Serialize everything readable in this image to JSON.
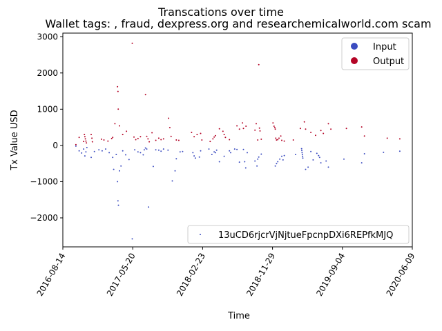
{
  "chart_data": {
    "type": "scatter",
    "title": "Transcations over time",
    "subtitle": "Wallet tags: , fraud, dexpress.org and researchemicalworld.com scam",
    "xlabel": "Time",
    "ylabel": "Tx Value USD",
    "x_ticks": [
      "2016-08-14",
      "2017-05-20",
      "2018-02-23",
      "2018-11-29",
      "2019-09-04",
      "2020-06-09"
    ],
    "y_ticks": [
      "−2000",
      "−1000",
      "0",
      "1000",
      "2000",
      "3000"
    ],
    "xlim": [
      "2016-08-14",
      "2020-06-09"
    ],
    "ylim": [
      -2800,
      3100
    ],
    "grid": false,
    "legend_location": "upper right",
    "legend": [
      {
        "label": "Input",
        "color": "#3b4cc0"
      },
      {
        "label": "Output",
        "color": "#b40426"
      }
    ],
    "legend2": {
      "label": "13uCD6rjcrVjNjtueFpcnpDXi6REPfkMJQ",
      "color": "#3b4cc0",
      "location": "lower right"
    },
    "series": [
      {
        "name": "Input",
        "color": "#3b4cc0",
        "points": [
          [
            "2016-10-05",
            -20
          ],
          [
            "2016-10-18",
            -150
          ],
          [
            "2016-10-28",
            -210
          ],
          [
            "2016-11-05",
            -100
          ],
          [
            "2016-11-10",
            -290
          ],
          [
            "2016-11-14",
            -180
          ],
          [
            "2016-11-18",
            -60
          ],
          [
            "2016-12-05",
            -330
          ],
          [
            "2016-12-18",
            -170
          ],
          [
            "2017-01-05",
            -120
          ],
          [
            "2017-01-18",
            -150
          ],
          [
            "2017-02-01",
            -100
          ],
          [
            "2017-02-15",
            -200
          ],
          [
            "2017-03-01",
            -330
          ],
          [
            "2017-03-05",
            -660
          ],
          [
            "2017-03-15",
            -250
          ],
          [
            "2017-03-20",
            -1000
          ],
          [
            "2017-03-22",
            -1530
          ],
          [
            "2017-03-24",
            -1650
          ],
          [
            "2017-03-28",
            -700
          ],
          [
            "2017-04-03",
            -570
          ],
          [
            "2017-04-10",
            -150
          ],
          [
            "2017-04-22",
            -260
          ],
          [
            "2017-05-05",
            -390
          ],
          [
            "2017-05-18",
            -2580
          ],
          [
            "2017-05-28",
            -120
          ],
          [
            "2017-06-10",
            -180
          ],
          [
            "2017-06-20",
            -200
          ],
          [
            "2017-07-01",
            -260
          ],
          [
            "2017-07-05",
            -120
          ],
          [
            "2017-07-10",
            -70
          ],
          [
            "2017-07-15",
            -100
          ],
          [
            "2017-07-22",
            -1700
          ],
          [
            "2017-08-10",
            -580
          ],
          [
            "2017-08-20",
            -120
          ],
          [
            "2017-09-01",
            -130
          ],
          [
            "2017-09-10",
            -160
          ],
          [
            "2017-09-20",
            -100
          ],
          [
            "2017-10-08",
            -130
          ],
          [
            "2017-10-25",
            -980
          ],
          [
            "2017-11-05",
            -700
          ],
          [
            "2017-11-10",
            -370
          ],
          [
            "2017-11-25",
            -180
          ],
          [
            "2017-12-05",
            -170
          ],
          [
            "2018-01-15",
            -200
          ],
          [
            "2018-01-20",
            -290
          ],
          [
            "2018-01-25",
            -350
          ],
          [
            "2018-02-10",
            -320
          ],
          [
            "2018-02-15",
            -150
          ],
          [
            "2018-03-20",
            -100
          ],
          [
            "2018-04-01",
            -250
          ],
          [
            "2018-04-10",
            -180
          ],
          [
            "2018-04-15",
            -200
          ],
          [
            "2018-04-20",
            -130
          ],
          [
            "2018-05-01",
            -450
          ],
          [
            "2018-05-20",
            -300
          ],
          [
            "2018-06-10",
            -150
          ],
          [
            "2018-06-15",
            -200
          ],
          [
            "2018-07-01",
            -100
          ],
          [
            "2018-07-10",
            -110
          ],
          [
            "2018-07-20",
            -460
          ],
          [
            "2018-08-05",
            -110
          ],
          [
            "2018-08-10",
            -450
          ],
          [
            "2018-08-14",
            -620
          ],
          [
            "2018-08-20",
            -200
          ],
          [
            "2018-09-20",
            -430
          ],
          [
            "2018-09-28",
            -570
          ],
          [
            "2018-10-01",
            -380
          ],
          [
            "2018-10-05",
            -320
          ],
          [
            "2018-10-15",
            -240
          ],
          [
            "2018-12-10",
            -570
          ],
          [
            "2018-12-15",
            -500
          ],
          [
            "2018-12-20",
            -450
          ],
          [
            "2018-12-28",
            -380
          ],
          [
            "2019-01-05",
            -300
          ],
          [
            "2019-01-10",
            -400
          ],
          [
            "2019-01-15",
            -280
          ],
          [
            "2019-03-01",
            -250
          ],
          [
            "2019-03-25",
            -90
          ],
          [
            "2019-03-26",
            -140
          ],
          [
            "2019-03-27",
            -200
          ],
          [
            "2019-03-28",
            -250
          ],
          [
            "2019-03-29",
            -300
          ],
          [
            "2019-03-30",
            -350
          ],
          [
            "2019-04-10",
            -660
          ],
          [
            "2019-04-20",
            -600
          ],
          [
            "2019-05-01",
            -170
          ],
          [
            "2019-05-10",
            -400
          ],
          [
            "2019-05-25",
            -220
          ],
          [
            "2019-06-01",
            -280
          ],
          [
            "2019-06-05",
            -330
          ],
          [
            "2019-06-10",
            -480
          ],
          [
            "2019-07-01",
            -430
          ],
          [
            "2019-07-10",
            -600
          ],
          [
            "2019-09-10",
            -380
          ],
          [
            "2019-11-20",
            -480
          ],
          [
            "2019-12-01",
            -230
          ],
          [
            "2020-02-15",
            -190
          ],
          [
            "2020-04-20",
            -160
          ]
        ]
      },
      {
        "name": "Output",
        "color": "#b40426",
        "points": [
          [
            "2016-10-05",
            20
          ],
          [
            "2016-10-18",
            220
          ],
          [
            "2016-11-05",
            110
          ],
          [
            "2016-11-08",
            300
          ],
          [
            "2016-11-10",
            240
          ],
          [
            "2016-11-12",
            180
          ],
          [
            "2016-11-14",
            120
          ],
          [
            "2016-11-16",
            70
          ],
          [
            "2016-12-05",
            300
          ],
          [
            "2016-12-08",
            200
          ],
          [
            "2016-12-10",
            100
          ],
          [
            "2017-01-15",
            170
          ],
          [
            "2017-01-25",
            150
          ],
          [
            "2017-02-10",
            120
          ],
          [
            "2017-02-25",
            190
          ],
          [
            "2017-03-01",
            220
          ],
          [
            "2017-03-10",
            600
          ],
          [
            "2017-03-20",
            1620
          ],
          [
            "2017-03-22",
            1490
          ],
          [
            "2017-03-23",
            1000
          ],
          [
            "2017-03-28",
            540
          ],
          [
            "2017-04-10",
            300
          ],
          [
            "2017-04-25",
            390
          ],
          [
            "2017-05-18",
            2820
          ],
          [
            "2017-05-25",
            230
          ],
          [
            "2017-06-01",
            160
          ],
          [
            "2017-06-10",
            190
          ],
          [
            "2017-06-20",
            240
          ],
          [
            "2017-07-10",
            1400
          ],
          [
            "2017-07-15",
            250
          ],
          [
            "2017-07-20",
            180
          ],
          [
            "2017-07-25",
            100
          ],
          [
            "2017-08-05",
            350
          ],
          [
            "2017-08-20",
            140
          ],
          [
            "2017-09-01",
            200
          ],
          [
            "2017-09-10",
            160
          ],
          [
            "2017-09-20",
            180
          ],
          [
            "2017-10-10",
            750
          ],
          [
            "2017-10-15",
            490
          ],
          [
            "2017-10-20",
            250
          ],
          [
            "2017-11-10",
            150
          ],
          [
            "2017-11-20",
            140
          ],
          [
            "2018-01-10",
            360
          ],
          [
            "2018-01-20",
            240
          ],
          [
            "2018-02-01",
            300
          ],
          [
            "2018-02-15",
            330
          ],
          [
            "2018-02-20",
            150
          ],
          [
            "2018-03-25",
            110
          ],
          [
            "2018-04-05",
            180
          ],
          [
            "2018-04-10",
            230
          ],
          [
            "2018-04-15",
            270
          ],
          [
            "2018-05-01",
            460
          ],
          [
            "2018-05-15",
            390
          ],
          [
            "2018-05-20",
            300
          ],
          [
            "2018-05-25",
            220
          ],
          [
            "2018-06-10",
            160
          ],
          [
            "2018-07-10",
            540
          ],
          [
            "2018-07-20",
            450
          ],
          [
            "2018-08-01",
            620
          ],
          [
            "2018-08-05",
            470
          ],
          [
            "2018-08-15",
            530
          ],
          [
            "2018-09-20",
            420
          ],
          [
            "2018-09-25",
            600
          ],
          [
            "2018-10-01",
            150
          ],
          [
            "2018-10-05",
            2230
          ],
          [
            "2018-10-08",
            480
          ],
          [
            "2018-10-10",
            400
          ],
          [
            "2018-10-15",
            170
          ],
          [
            "2018-12-01",
            620
          ],
          [
            "2018-12-05",
            530
          ],
          [
            "2018-12-08",
            490
          ],
          [
            "2018-12-10",
            450
          ],
          [
            "2018-12-12",
            200
          ],
          [
            "2018-12-15",
            150
          ],
          [
            "2018-12-20",
            160
          ],
          [
            "2018-12-25",
            200
          ],
          [
            "2019-01-01",
            260
          ],
          [
            "2019-01-05",
            140
          ],
          [
            "2019-01-15",
            120
          ],
          [
            "2019-02-20",
            150
          ],
          [
            "2019-03-20",
            470
          ],
          [
            "2019-04-05",
            650
          ],
          [
            "2019-04-10",
            450
          ],
          [
            "2019-05-01",
            360
          ],
          [
            "2019-05-20",
            280
          ],
          [
            "2019-06-10",
            410
          ],
          [
            "2019-06-20",
            330
          ],
          [
            "2019-07-10",
            600
          ],
          [
            "2019-07-20",
            450
          ],
          [
            "2019-09-20",
            470
          ],
          [
            "2019-11-20",
            510
          ],
          [
            "2019-12-01",
            260
          ],
          [
            "2020-03-01",
            200
          ],
          [
            "2020-04-20",
            180
          ]
        ]
      },
      {
        "name": "13uCD6rjcrVjNjtueFpcnpDXi6REPfkMJQ",
        "color": "#3b4cc0",
        "points": []
      }
    ]
  }
}
